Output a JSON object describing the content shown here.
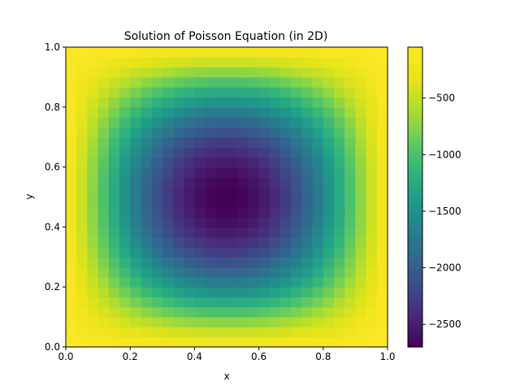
{
  "chart_data": {
    "type": "heatmap",
    "title": "Solution of Poisson Equation (in 2D)",
    "xlabel": "x",
    "ylabel": "y",
    "xlim": [
      0,
      1
    ],
    "ylim": [
      0,
      1
    ],
    "x_ticks": [
      0.0,
      0.2,
      0.4,
      0.6,
      0.8,
      1.0
    ],
    "y_ticks": [
      0.0,
      0.2,
      0.4,
      0.6,
      0.8,
      1.0
    ],
    "x_tick_labels": [
      "0.0",
      "0.2",
      "0.4",
      "0.6",
      "0.8",
      "1.0"
    ],
    "y_tick_labels": [
      "0.0",
      "0.2",
      "0.4",
      "0.6",
      "0.8",
      "1.0"
    ],
    "grid_size": [
      30,
      30
    ],
    "field": {
      "shape": "separable sine product u(x,y) = peak * sin(pi*x) * sin(pi*y)",
      "boundary_value": -50,
      "peak_value": -2700
    },
    "colorbar": {
      "colormap": "viridis",
      "range": [
        -2700,
        -50
      ],
      "ticks": [
        -2500,
        -2000,
        -1500,
        -1000,
        -500
      ],
      "tick_labels": [
        "−2500",
        "−2000",
        "−1500",
        "−1000",
        "−500"
      ]
    },
    "grid": false,
    "legend": "none"
  }
}
